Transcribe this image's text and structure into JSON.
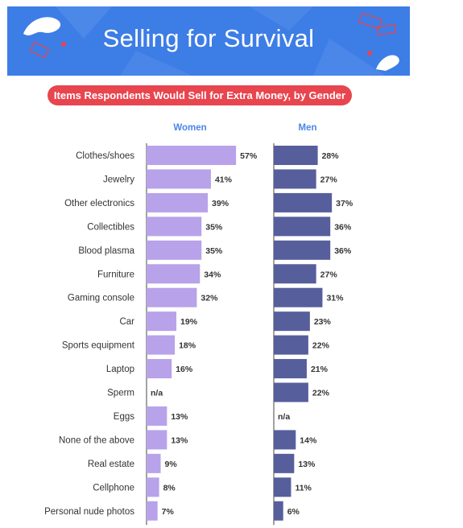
{
  "header": {
    "title": "Selling for Survival",
    "subtitle": "Items Respondents Would Sell for Extra Money, by Gender"
  },
  "colors": {
    "banner": "#3d7de6",
    "pill": "#e8454f",
    "women_bar": "#b8a2ea",
    "men_bar": "#575e9c",
    "column_header": "#4a86e8"
  },
  "chart_data": {
    "type": "bar",
    "orientation": "horizontal",
    "title": "Items Respondents Would Sell for Extra Money, by Gender",
    "categories": [
      "Clothes/shoes",
      "Jewelry",
      "Other electronics",
      "Collectibles",
      "Blood plasma",
      "Furniture",
      "Gaming console",
      "Car",
      "Sports equipment",
      "Laptop",
      "Sperm",
      "Eggs",
      "None of the above",
      "Real estate",
      "Cellphone",
      "Personal nude photos"
    ],
    "series": [
      {
        "name": "Women",
        "values": [
          57,
          41,
          39,
          35,
          35,
          34,
          32,
          19,
          18,
          16,
          null,
          13,
          13,
          9,
          8,
          7
        ],
        "labels": [
          "57%",
          "41%",
          "39%",
          "35%",
          "35%",
          "34%",
          "32%",
          "19%",
          "18%",
          "16%",
          "n/a",
          "13%",
          "13%",
          "9%",
          "8%",
          "7%"
        ]
      },
      {
        "name": "Men",
        "values": [
          28,
          27,
          37,
          36,
          36,
          27,
          31,
          23,
          22,
          21,
          22,
          null,
          14,
          13,
          11,
          6
        ],
        "labels": [
          "28%",
          "27%",
          "37%",
          "36%",
          "36%",
          "27%",
          "31%",
          "23%",
          "22%",
          "21%",
          "22%",
          "n/a",
          "14%",
          "13%",
          "11%",
          "6%"
        ]
      }
    ],
    "value_unit": "%",
    "grid": false
  }
}
